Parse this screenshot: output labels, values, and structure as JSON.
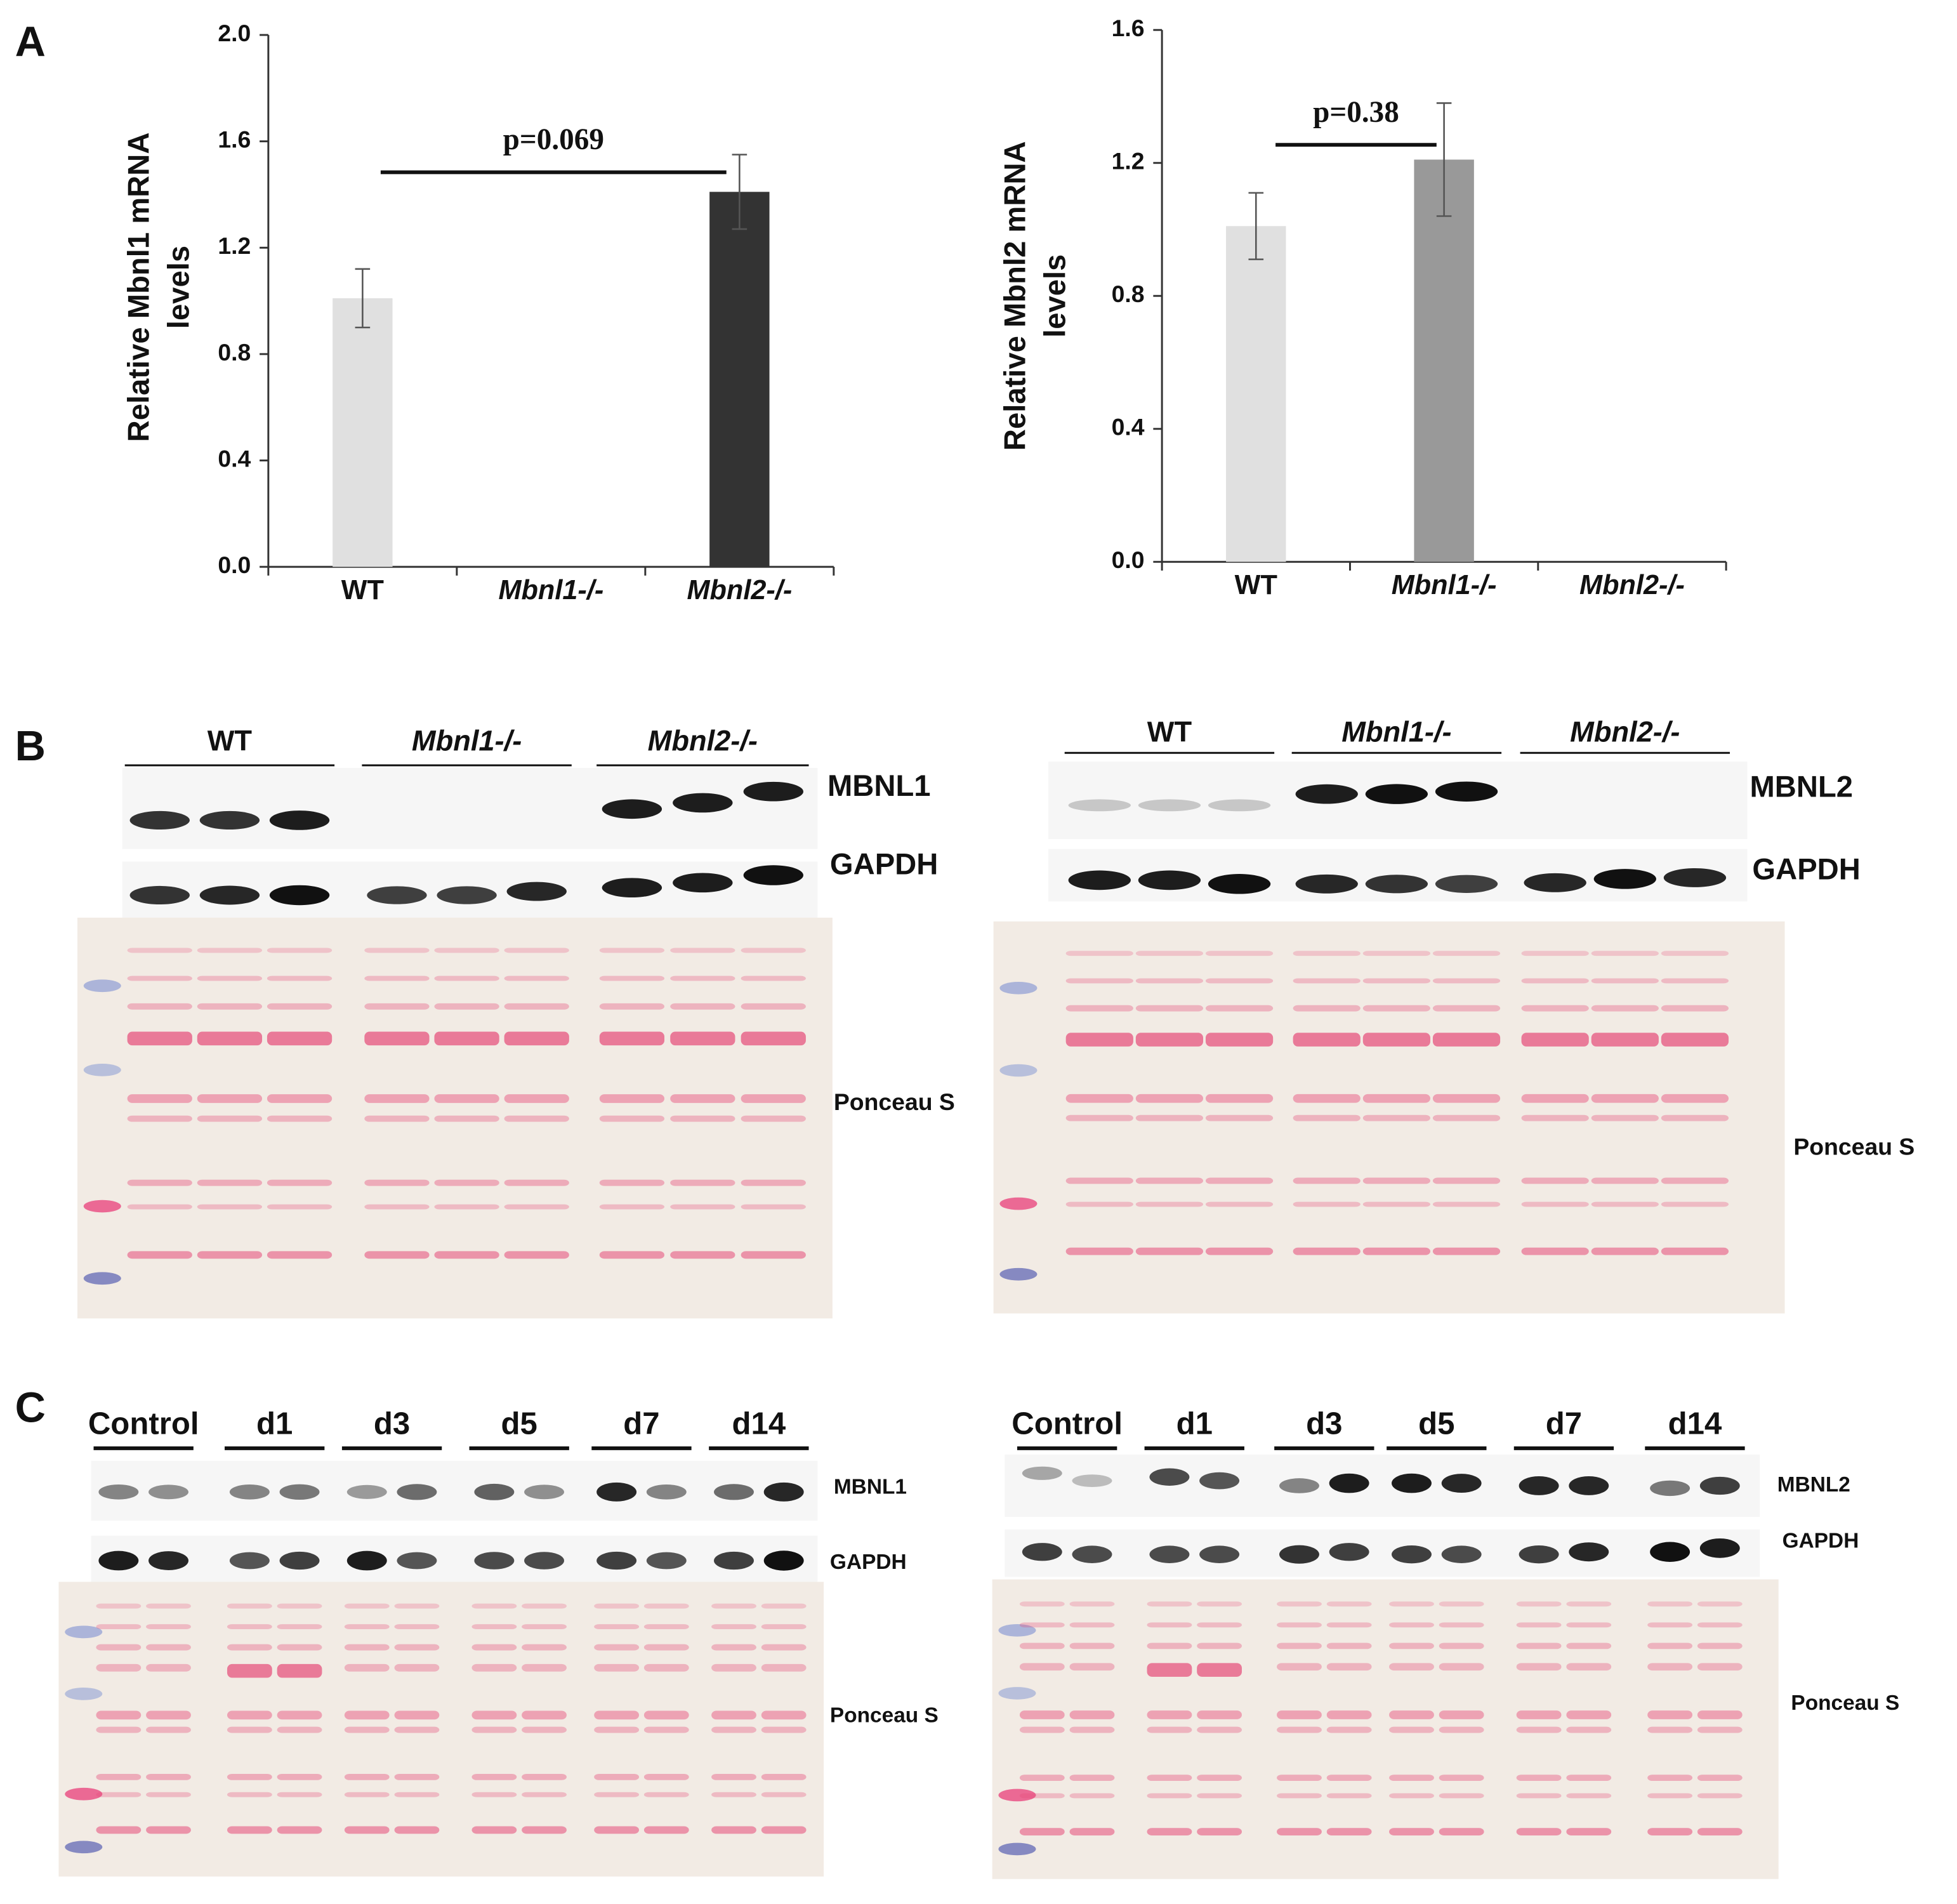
{
  "panel_labels": [
    "A",
    "B",
    "C"
  ],
  "chart_data": [
    {
      "type": "bar",
      "ylabel": [
        "Relative Mbnl1 mRNA",
        "levels"
      ],
      "categories": [
        "WT",
        "Mbnl1-/-",
        "Mbnl2-/-"
      ],
      "values": [
        1.01,
        0,
        1.41
      ],
      "errors": [
        0.11,
        null,
        0.14
      ],
      "colors": [
        "#e0e0e0",
        "#e0e0e0",
        "#333333"
      ],
      "ylim": [
        0,
        2.0
      ],
      "yticks": [
        {
          "value": 0,
          "label": "0.0"
        },
        0.4,
        0.8,
        1.2,
        1.6,
        {
          "value": 2,
          "label": "2.0"
        }
      ],
      "annotation": "p=0.069",
      "grid": false
    },
    {
      "type": "bar",
      "ylabel": [
        "Relative Mbnl2 mRNA",
        "levels"
      ],
      "categories": [
        "WT",
        "Mbnl1-/-",
        "Mbnl2-/-"
      ],
      "values": [
        1.01,
        1.21,
        0
      ],
      "errors": [
        0.1,
        0.17,
        null
      ],
      "colors": [
        "#e0e0e0",
        "#999999",
        "#999999"
      ],
      "ylim": [
        0,
        1.6
      ],
      "yticks": [
        {
          "value": 0,
          "label": "0.0"
        },
        0.4,
        0.8,
        1.2,
        1.6
      ],
      "annotation": "p=0.38",
      "grid": false
    }
  ],
  "blots": [
    {
      "groups": [
        "WT",
        "Mbnl1-/-",
        "Mbnl2-/-"
      ],
      "bands": [
        "MBNL1",
        "GAPDH"
      ],
      "stain": "Ponceau S"
    },
    {
      "groups": [
        "WT",
        "Mbnl1-/-",
        "Mbnl2-/-"
      ],
      "bands": [
        "MBNL2",
        "GAPDH"
      ],
      "stain": "Ponceau S"
    },
    {
      "groups": [
        "Control",
        "d1",
        "d3",
        "d5",
        "d7",
        "d14"
      ],
      "bands": [
        "MBNL1",
        "GAPDH"
      ],
      "stain": "Ponceau S"
    },
    {
      "groups": [
        "Control",
        "d1",
        "d3",
        "d5",
        "d7",
        "d14"
      ],
      "bands": [
        "MBNL2",
        "GAPDH"
      ],
      "stain": "Ponceau S"
    }
  ]
}
